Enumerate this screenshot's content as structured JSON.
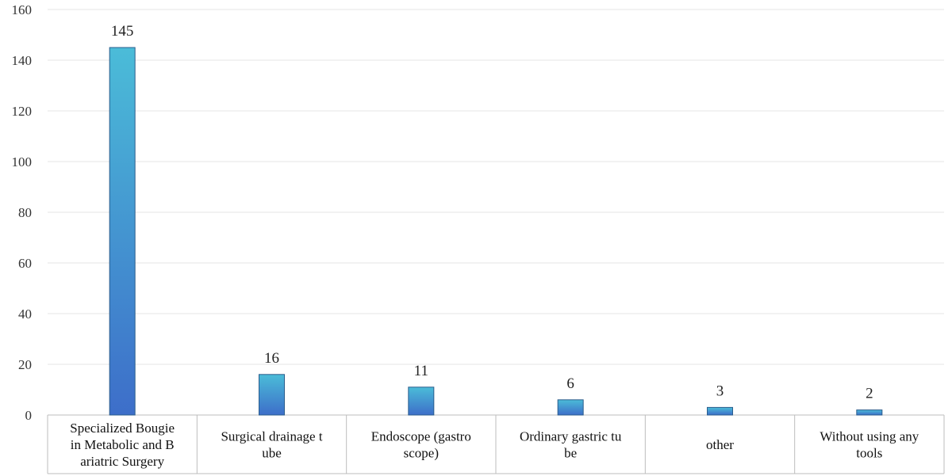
{
  "chart_data": {
    "type": "bar",
    "categories": [
      [
        "Specialized Bougie",
        "in Metabolic and B",
        "ariatric Surgery"
      ],
      [
        "Surgical drainage t",
        "ube"
      ],
      [
        "Endoscope (gastro",
        "scope)"
      ],
      [
        "Ordinary gastric tu",
        "be"
      ],
      [
        "other"
      ],
      [
        "Without using any",
        "tools"
      ]
    ],
    "values": [
      145,
      16,
      11,
      6,
      3,
      2
    ],
    "data_labels": [
      "145",
      "16",
      "11",
      "6",
      "3",
      "2"
    ],
    "ylim": [
      0,
      160
    ],
    "yticks": [
      "0",
      "20",
      "40",
      "60",
      "80",
      "100",
      "120",
      "140",
      "160"
    ],
    "grid": true,
    "legend": "none",
    "title": "",
    "xlabel": "",
    "ylabel": ""
  },
  "colors": {
    "bar_top": "#4bbcd8",
    "bar_bottom": "#3d6ec9",
    "bar_edge": "#2a5d8c",
    "grid": "#e6e6e6",
    "axis": "#bdbdbd"
  }
}
